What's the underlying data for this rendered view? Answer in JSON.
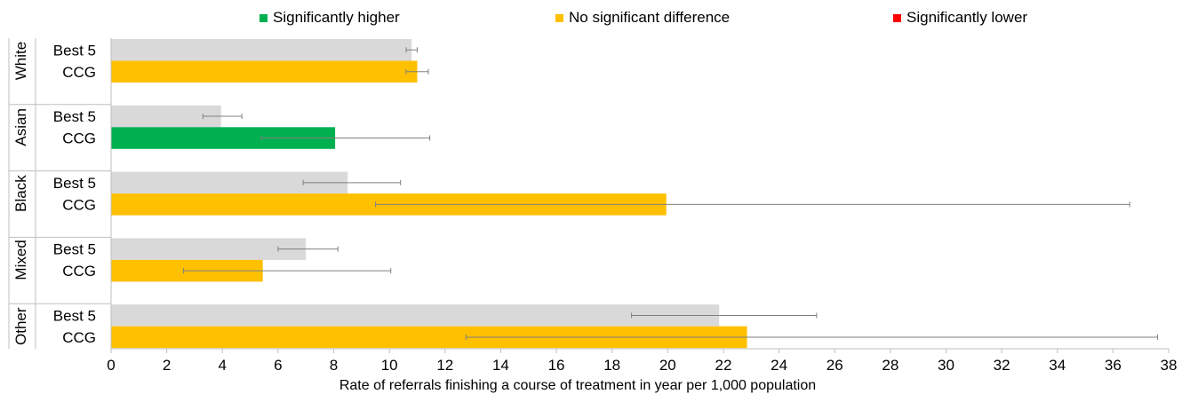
{
  "legend": {
    "items": [
      {
        "label": "Significantly higher",
        "color": "#00b050"
      },
      {
        "label": "No significant difference",
        "color": "#ffc000"
      },
      {
        "label": "Significantly lower",
        "color": "#ff0000"
      }
    ]
  },
  "chart_data": {
    "type": "bar",
    "orientation": "horizontal",
    "title": "",
    "xlabel": "Rate of referrals finishing a course of treatment in year per 1,000 population",
    "ylabel": "",
    "xlim": [
      0,
      38
    ],
    "xticks": [
      0,
      2,
      4,
      6,
      8,
      10,
      12,
      14,
      16,
      18,
      20,
      22,
      24,
      26,
      28,
      30,
      32,
      34,
      36,
      38
    ],
    "grid": false,
    "legend_position": "top",
    "groups": [
      {
        "name": "White",
        "bars": [
          {
            "label": "Best 5",
            "value": 10.8,
            "lower": 10.6,
            "upper": 11.0,
            "status": "comparator",
            "color": "#d9d9d9"
          },
          {
            "label": "CCG",
            "value": 11.0,
            "lower": 10.6,
            "upper": 11.4,
            "status": "No significant difference",
            "color": "#ffc000"
          }
        ]
      },
      {
        "name": "Asian",
        "bars": [
          {
            "label": "Best 5",
            "value": 3.95,
            "lower": 3.3,
            "upper": 4.7,
            "status": "comparator",
            "color": "#d9d9d9"
          },
          {
            "label": "CCG",
            "value": 8.05,
            "lower": 5.4,
            "upper": 11.45,
            "status": "Significantly higher",
            "color": "#00b050"
          }
        ]
      },
      {
        "name": "Black",
        "bars": [
          {
            "label": "Best 5",
            "value": 8.5,
            "lower": 6.9,
            "upper": 10.4,
            "status": "comparator",
            "color": "#d9d9d9"
          },
          {
            "label": "CCG",
            "value": 19.95,
            "lower": 9.5,
            "upper": 36.6,
            "status": "No significant difference",
            "color": "#ffc000"
          }
        ]
      },
      {
        "name": "Mixed",
        "bars": [
          {
            "label": "Best 5",
            "value": 7.0,
            "lower": 6.0,
            "upper": 8.15,
            "status": "comparator",
            "color": "#d9d9d9"
          },
          {
            "label": "CCG",
            "value": 5.45,
            "lower": 2.6,
            "upper": 10.05,
            "status": "No significant difference",
            "color": "#ffc000"
          }
        ]
      },
      {
        "name": "Other",
        "bars": [
          {
            "label": "Best 5",
            "value": 21.85,
            "lower": 18.7,
            "upper": 25.35,
            "status": "comparator",
            "color": "#d9d9d9"
          },
          {
            "label": "CCG",
            "value": 22.85,
            "lower": 12.75,
            "upper": 37.6,
            "status": "No significant difference",
            "color": "#ffc000"
          }
        ]
      }
    ]
  }
}
